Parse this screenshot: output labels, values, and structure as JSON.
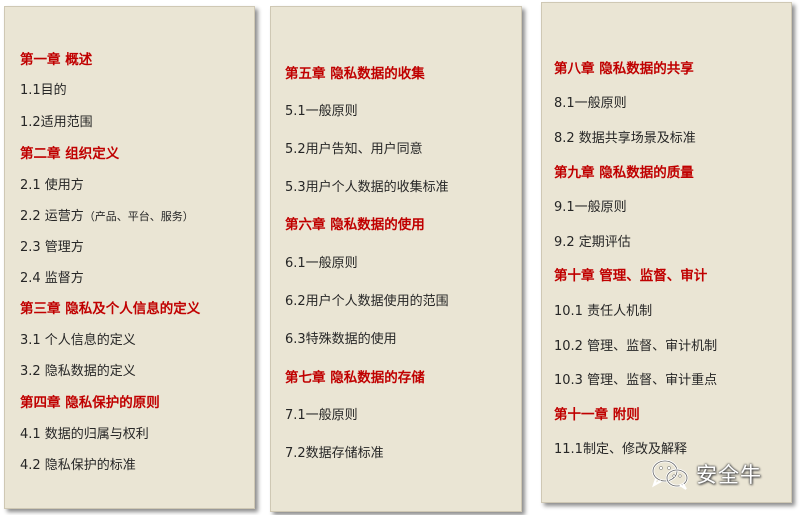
{
  "col1": {
    "lines": [
      {
        "text": "第一章 概述",
        "chapter": true
      },
      {
        "text": "1.1目的"
      },
      {
        "text": "1.2适用范围"
      },
      {
        "text": "第二章 组织定义",
        "chapter": true
      },
      {
        "text": "2.1 使用方"
      },
      {
        "text": "2.2 运营方",
        "note": "（产品、平台、服务）"
      },
      {
        "text": "2.3 管理方"
      },
      {
        "text": "2.4 监督方"
      },
      {
        "text": "第三章 隐私及个人信息的定义",
        "chapter": true
      },
      {
        "text": "3.1 个人信息的定义"
      },
      {
        "text": "3.2 隐私数据的定义"
      },
      {
        "text": "第四章 隐私保护的原则",
        "chapter": true
      },
      {
        "text": "4.1 数据的归属与权利"
      },
      {
        "text": "4.2 隐私保护的标准"
      }
    ]
  },
  "col2": {
    "lines": [
      {
        "text": "第五章 隐私数据的收集",
        "chapter": true
      },
      {
        "text": "5.1一般原则"
      },
      {
        "text": "5.2用户告知、用户同意"
      },
      {
        "text": "5.3用户个人数据的收集标准"
      },
      {
        "text": "第六章 隐私数据的使用",
        "chapter": true
      },
      {
        "text": "6.1一般原则"
      },
      {
        "text": "6.2用户个人数据使用的范围"
      },
      {
        "text": "6.3特殊数据的使用"
      },
      {
        "text": "第七章  隐私数据的存储",
        "chapter": true
      },
      {
        "text": "7.1一般原则"
      },
      {
        "text": "7.2数据存储标准"
      }
    ]
  },
  "col3": {
    "lines": [
      {
        "text": "第八章 隐私数据的共享",
        "chapter": true
      },
      {
        "text": "8.1一般原则"
      },
      {
        "text": "8.2 数据共享场景及标准"
      },
      {
        "text": "第九章 隐私数据的质量",
        "chapter": true
      },
      {
        "text": "9.1一般原则"
      },
      {
        "text": "9.2 定期评估"
      },
      {
        "text": "第十章 管理、监督、审计",
        "chapter": true
      },
      {
        "text": "10.1 责任人机制"
      },
      {
        "text": "10.2 管理、监督、审计机制"
      },
      {
        "text": "10.3 管理、监督、审计重点"
      },
      {
        "text": "第十一章  附则",
        "chapter": true
      },
      {
        "text": "11.1制定、修改及解释"
      }
    ]
  },
  "watermark": {
    "text": "安全牛",
    "icon": "wechat-icon"
  },
  "colors": {
    "panel": "#eae5d4",
    "chapter": "#c00000",
    "text": "#262626"
  }
}
